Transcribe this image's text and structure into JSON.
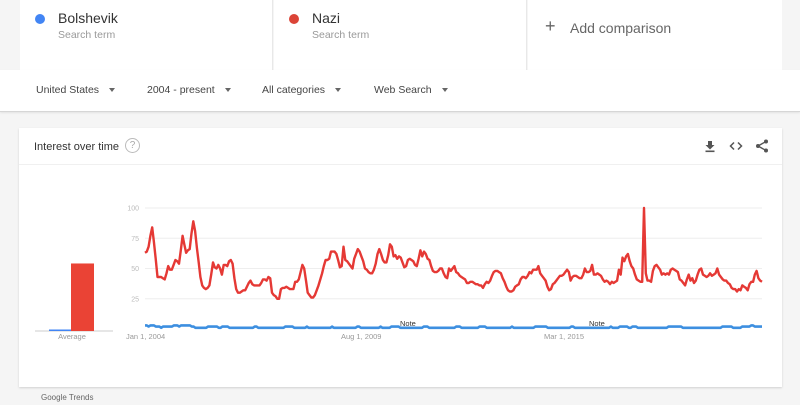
{
  "terms": [
    {
      "name": "Bolshevik",
      "subtitle": "Search term",
      "color": "#4285f4"
    },
    {
      "name": "Nazi",
      "subtitle": "Search term",
      "color": "#db4437"
    }
  ],
  "add_comparison": {
    "icon": "plus-icon",
    "label": "Add comparison"
  },
  "filters": [
    {
      "label": "United States"
    },
    {
      "label": "2004 - present"
    },
    {
      "label": "All categories"
    },
    {
      "label": "Web Search"
    }
  ],
  "card": {
    "title": "Interest over time",
    "help_icon": "?",
    "actions": [
      "download-icon",
      "embed-icon",
      "share-icon"
    ]
  },
  "footer": {
    "label": "Google Trends"
  },
  "chart_data": {
    "type": "line",
    "title": "Interest over time",
    "xlabel": "",
    "ylabel": "",
    "ylim": [
      0,
      100
    ],
    "y_ticks": [
      25,
      50,
      75,
      100
    ],
    "x_tick_labels": [
      "Jan 1, 2004",
      "Aug 1, 2009",
      "Mar 1, 2015"
    ],
    "x_range": [
      "Jan 2004",
      "~Mar 2019"
    ],
    "annotations": [
      {
        "label": "Note",
        "position": "~Jan 2011"
      },
      {
        "label": "Note",
        "position": "~Jan 2016"
      }
    ],
    "average": {
      "label": "Average",
      "series": [
        {
          "name": "Bolshevik",
          "value": 1
        },
        {
          "name": "Nazi",
          "value": 45
        }
      ]
    },
    "grid": true,
    "legend_position": "top",
    "series": [
      {
        "name": "Bolshevik",
        "color": "#4285f4",
        "values": [
          3,
          3,
          2,
          3,
          3,
          3,
          2,
          2,
          2,
          1,
          2,
          2,
          2,
          2,
          2,
          2,
          3,
          3,
          3,
          2,
          3,
          3,
          3,
          3,
          3,
          3,
          2,
          2,
          1,
          1,
          1,
          1,
          1,
          1,
          1,
          2,
          2,
          2,
          2,
          2,
          2,
          1,
          1,
          2,
          2,
          2,
          2,
          1,
          1,
          1,
          1,
          1,
          1,
          1,
          1,
          1,
          1,
          1,
          1,
          1,
          1,
          2,
          2,
          1,
          1,
          1,
          1,
          1,
          1,
          1,
          1,
          1,
          1,
          1,
          1,
          1,
          1,
          1,
          2,
          2,
          2,
          2,
          2,
          1,
          1,
          1,
          1,
          1,
          1,
          1,
          2,
          1,
          1,
          1,
          1,
          1,
          1,
          1,
          1,
          1,
          1,
          1,
          1,
          1,
          2,
          1,
          1,
          1,
          1,
          1,
          1,
          1,
          1,
          1,
          1,
          1,
          1,
          1,
          2,
          2,
          1,
          1,
          1,
          1,
          1,
          1,
          1,
          1,
          1,
          1,
          1,
          2,
          1,
          1,
          1,
          1,
          1,
          2,
          2,
          2,
          2,
          2,
          1,
          1,
          1,
          1,
          1,
          1,
          1,
          1,
          1,
          1,
          1,
          1,
          1,
          2,
          2,
          2,
          1,
          1,
          1,
          1,
          1,
          1,
          1,
          1,
          1,
          1,
          1,
          1,
          1,
          1,
          1,
          2,
          2,
          2,
          1,
          1,
          1,
          1,
          1,
          1,
          1,
          1,
          1,
          1,
          2,
          2,
          2,
          2,
          1,
          1,
          1,
          1,
          1,
          1,
          1,
          1,
          1,
          1,
          1,
          1,
          1,
          1,
          2,
          1,
          1,
          1,
          1,
          1,
          1,
          1,
          1,
          1,
          1,
          1,
          1,
          2,
          2,
          2,
          2,
          2,
          2,
          2,
          1,
          1,
          1,
          1,
          1,
          1,
          1,
          1,
          1,
          1,
          1,
          1,
          1,
          2,
          2,
          1,
          1,
          1,
          1,
          1,
          1,
          1,
          1,
          1,
          1,
          1,
          1,
          1,
          1,
          1,
          1,
          1,
          1,
          1,
          1,
          2,
          1,
          1,
          1,
          1,
          2,
          2,
          2,
          2,
          2,
          1,
          1,
          2,
          2,
          2,
          1,
          1,
          1,
          1,
          1,
          1,
          1,
          1,
          1,
          1,
          1,
          1,
          1,
          1,
          1,
          1,
          1,
          2,
          2,
          2,
          2,
          2,
          2,
          2,
          2,
          1,
          1,
          1,
          1,
          1,
          1,
          1,
          1,
          1,
          1,
          1,
          1,
          1,
          1,
          1,
          1,
          1,
          1,
          1,
          1,
          1,
          1,
          2,
          2,
          2,
          2,
          2,
          2,
          1,
          1,
          1,
          1,
          1,
          2,
          2,
          2,
          2,
          2,
          3,
          3,
          2,
          2,
          2,
          2,
          2
        ]
      },
      {
        "name": "Nazi",
        "color": "#db4437",
        "values": [
          63,
          64,
          68,
          77,
          84,
          72,
          58,
          43,
          43,
          43,
          42,
          41,
          46,
          52,
          49,
          49,
          53,
          57,
          56,
          54,
          65,
          77,
          70,
          63,
          65,
          66,
          79,
          89,
          81,
          67,
          55,
          43,
          36,
          34,
          33,
          34,
          36,
          45,
          55,
          51,
          50,
          53,
          50,
          45,
          53,
          53,
          52,
          56,
          57,
          54,
          42,
          33,
          30,
          30,
          31,
          32,
          32,
          35,
          38,
          40,
          37,
          36,
          36,
          36,
          36,
          38,
          41,
          41,
          40,
          43,
          42,
          30,
          28,
          27,
          25,
          25,
          33,
          34,
          34,
          35,
          34,
          33,
          33,
          33,
          39,
          39,
          41,
          47,
          53,
          50,
          40,
          30,
          28,
          26,
          26,
          28,
          32,
          36,
          41,
          46,
          52,
          57,
          57,
          58,
          64,
          64,
          64,
          62,
          57,
          51,
          52,
          68,
          57,
          56,
          54,
          52,
          50,
          58,
          62,
          66,
          64,
          60,
          56,
          50,
          49,
          47,
          46,
          46,
          49,
          54,
          62,
          66,
          62,
          57,
          55,
          55,
          61,
          70,
          68,
          60,
          61,
          58,
          60,
          59,
          55,
          51,
          52,
          57,
          58,
          57,
          56,
          53,
          52,
          58,
          65,
          60,
          64,
          62,
          58,
          57,
          52,
          48,
          47,
          47,
          48,
          50,
          50,
          46,
          43,
          42,
          50,
          48,
          50,
          52,
          47,
          46,
          44,
          43,
          42,
          41,
          38,
          38,
          39,
          39,
          38,
          37,
          37,
          36,
          36,
          34,
          37,
          39,
          38,
          40,
          44,
          47,
          48,
          48,
          47,
          46,
          42,
          39,
          35,
          32,
          31,
          31,
          32,
          35,
          36,
          37,
          41,
          43,
          43,
          42,
          44,
          47,
          46,
          49,
          49,
          49,
          52,
          46,
          44,
          42,
          40,
          35,
          32,
          33,
          37,
          38,
          40,
          42,
          44,
          44,
          45,
          47,
          49,
          47,
          40,
          43,
          44,
          44,
          43,
          42,
          42,
          45,
          50,
          47,
          47,
          48,
          53,
          45,
          45,
          46,
          45,
          44,
          41,
          39,
          40,
          39,
          37,
          39,
          38,
          39,
          40,
          49,
          45,
          59,
          56,
          60,
          62,
          56,
          52,
          50,
          45,
          41,
          40,
          39,
          39,
          100,
          46,
          40,
          40,
          39,
          48,
          52,
          53,
          51,
          49,
          45,
          46,
          45,
          46,
          45,
          49,
          50,
          49,
          48,
          47,
          41,
          40,
          38,
          36,
          41,
          45,
          40,
          42,
          38,
          40,
          45,
          49,
          50,
          45,
          44,
          43,
          44,
          46,
          44,
          45,
          46,
          50,
          45,
          43,
          41,
          40,
          40,
          38,
          37,
          34,
          33,
          33,
          31,
          33,
          32,
          36,
          35,
          34,
          32,
          37,
          39,
          39,
          45,
          48,
          42,
          40,
          39
        ]
      }
    ]
  }
}
